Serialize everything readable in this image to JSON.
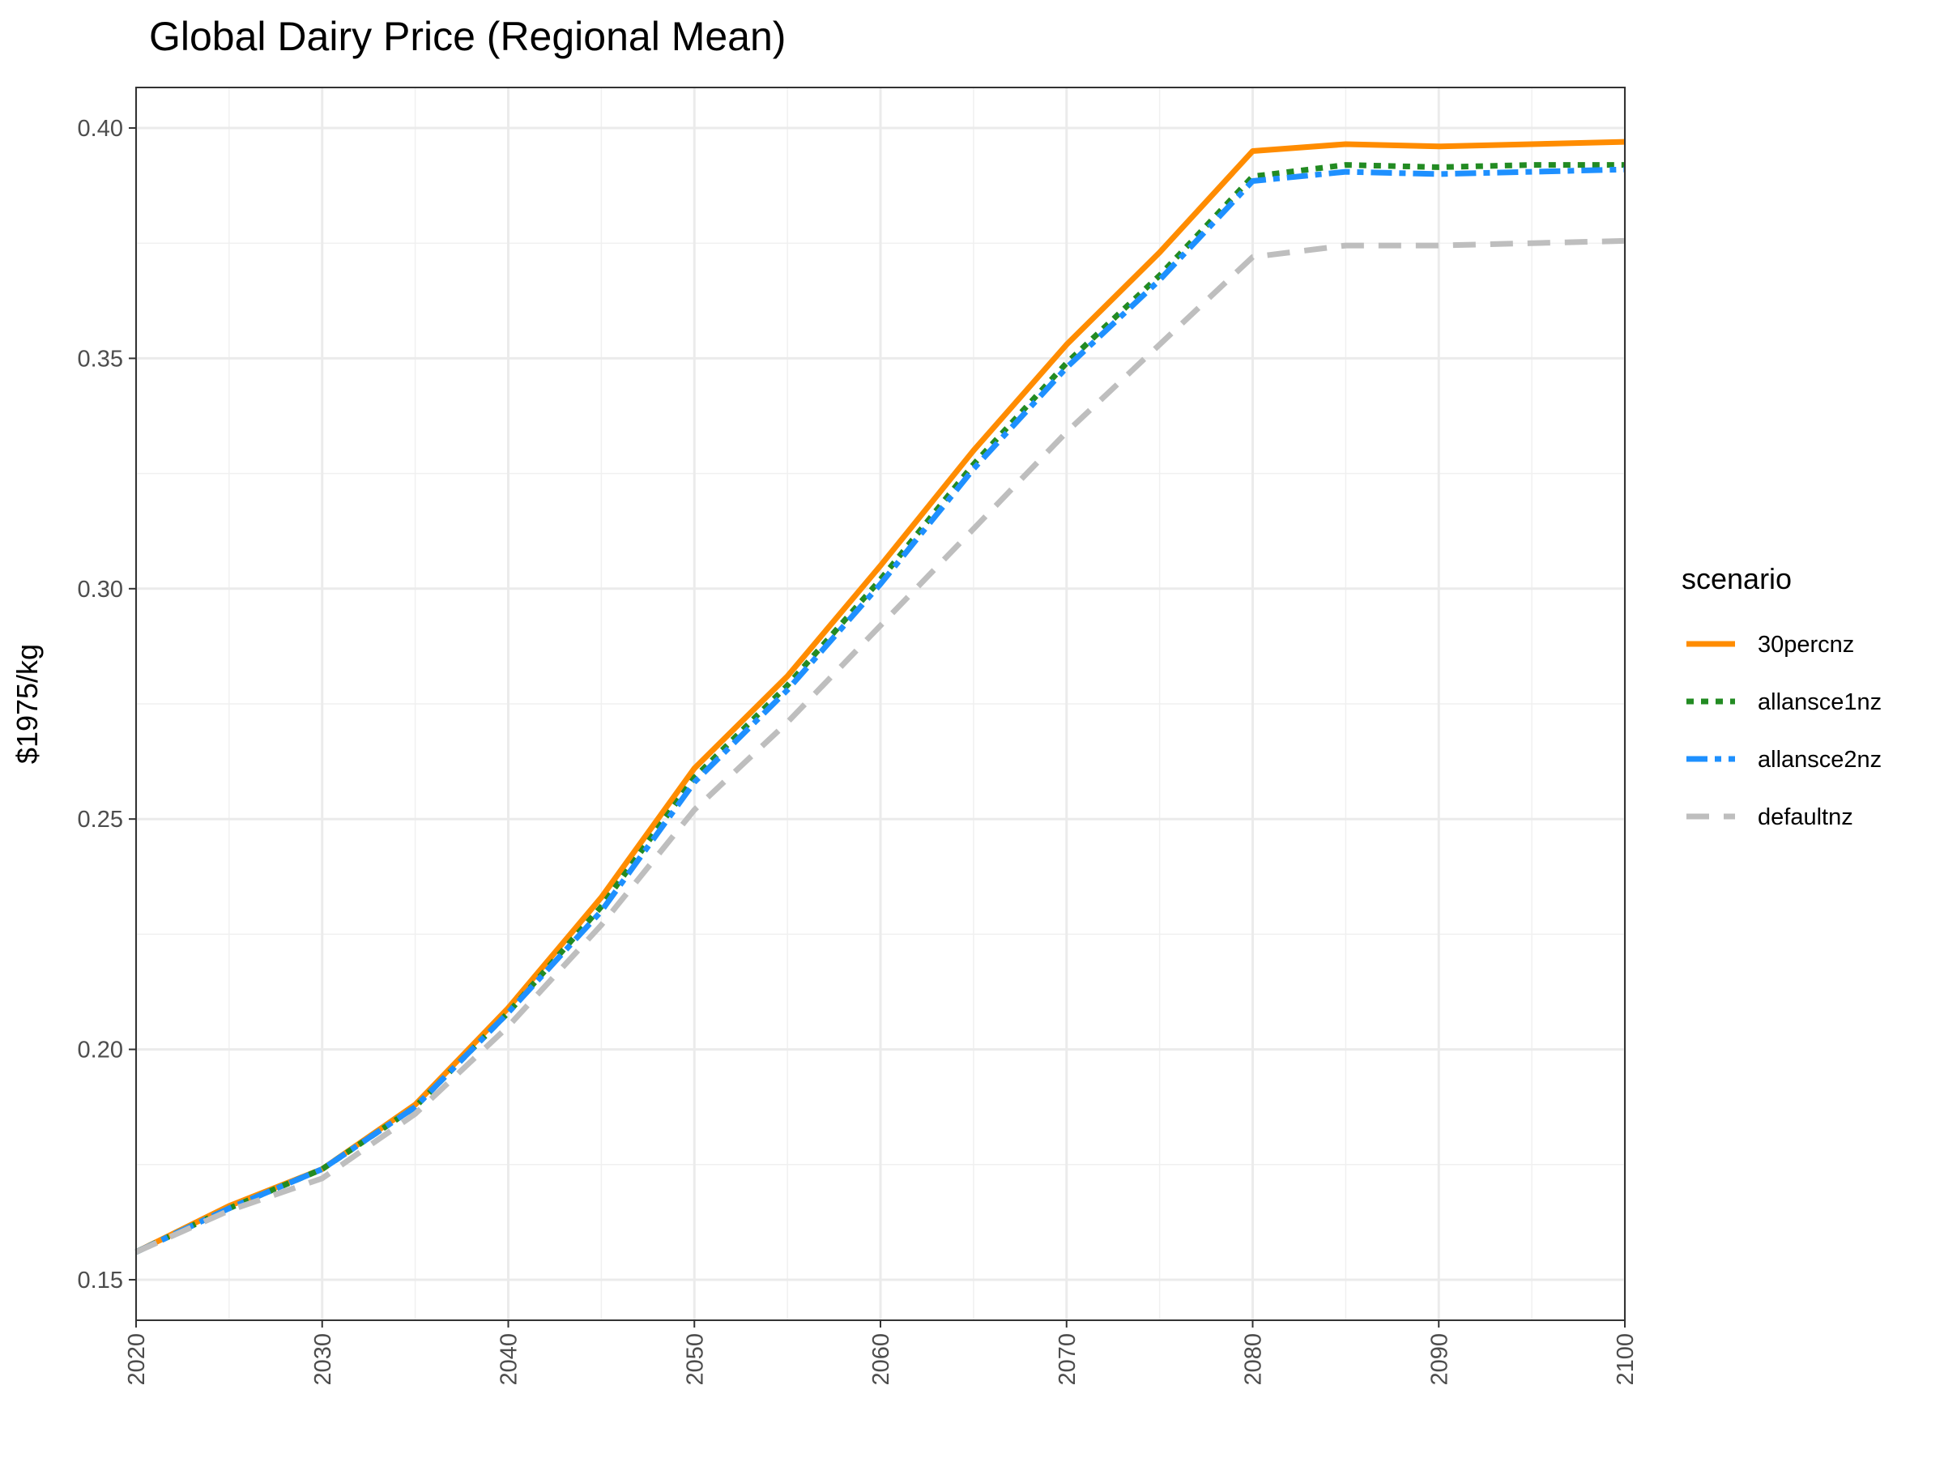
{
  "chart_data": {
    "type": "line",
    "title": "Global Dairy Price (Regional Mean)",
    "xlabel": "",
    "ylabel": "$1975/kg",
    "xlim": [
      2020,
      2100
    ],
    "ylim": [
      0.1412,
      0.4088
    ],
    "x_ticks": [
      2020,
      2030,
      2040,
      2050,
      2060,
      2070,
      2080,
      2090,
      2100
    ],
    "x_tick_labels": [
      "2020",
      "2030",
      "2040",
      "2050",
      "2060",
      "2070",
      "2080",
      "2090",
      "2100"
    ],
    "y_ticks": [
      0.15,
      0.2,
      0.25,
      0.3,
      0.35,
      0.4
    ],
    "y_tick_labels": [
      "0.15",
      "0.20",
      "0.25",
      "0.30",
      "0.35",
      "0.40"
    ],
    "grid": true,
    "legend": {
      "title": "scenario",
      "position": "right"
    },
    "x": [
      2020,
      2025,
      2030,
      2035,
      2040,
      2045,
      2050,
      2055,
      2060,
      2065,
      2070,
      2075,
      2080,
      2085,
      2090,
      2095,
      2100
    ],
    "series": [
      {
        "name": "30percnz",
        "color": "#ff8c00",
        "dash": "solid",
        "values": [
          0.156,
          0.166,
          0.174,
          0.188,
          0.209,
          0.233,
          0.261,
          0.281,
          0.305,
          0.33,
          0.353,
          0.373,
          0.395,
          0.3965,
          0.396,
          0.3965,
          0.397
        ]
      },
      {
        "name": "allansce1nz",
        "color": "#228b22",
        "dash": "dotted",
        "values": [
          0.156,
          0.1655,
          0.174,
          0.1875,
          0.208,
          0.231,
          0.259,
          0.279,
          0.302,
          0.327,
          0.349,
          0.368,
          0.3895,
          0.392,
          0.3915,
          0.392,
          0.392
        ]
      },
      {
        "name": "allansce2nz",
        "color": "#1e90ff",
        "dash": "dashdot",
        "values": [
          0.156,
          0.1655,
          0.174,
          0.1875,
          0.208,
          0.23,
          0.258,
          0.278,
          0.301,
          0.326,
          0.348,
          0.367,
          0.3885,
          0.3905,
          0.39,
          0.3905,
          0.391
        ]
      },
      {
        "name": "defaultnz",
        "color": "#bebebe",
        "dash": "dashed",
        "values": [
          0.156,
          0.165,
          0.172,
          0.186,
          0.205,
          0.227,
          0.252,
          0.271,
          0.292,
          0.313,
          0.334,
          0.353,
          0.372,
          0.3745,
          0.3745,
          0.375,
          0.3755
        ]
      }
    ]
  }
}
